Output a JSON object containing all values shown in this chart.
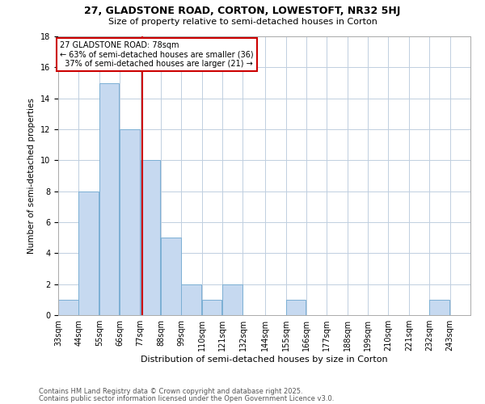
{
  "title1": "27, GLADSTONE ROAD, CORTON, LOWESTOFT, NR32 5HJ",
  "title2": "Size of property relative to semi-detached houses in Corton",
  "xlabel": "Distribution of semi-detached houses by size in Corton",
  "ylabel": "Number of semi-detached properties",
  "bins": [
    33,
    44,
    55,
    66,
    77,
    88,
    99,
    110,
    121,
    132,
    144,
    155,
    166,
    177,
    188,
    199,
    210,
    221,
    232,
    243,
    254
  ],
  "counts": [
    1,
    8,
    15,
    12,
    10,
    5,
    2,
    1,
    2,
    0,
    0,
    1,
    0,
    0,
    0,
    0,
    0,
    0,
    1,
    0
  ],
  "bar_color": "#c6d9f0",
  "bar_edge_color": "#7bafd4",
  "vline_x": 78,
  "vline_color": "#cc0000",
  "annotation_text": "27 GLADSTONE ROAD: 78sqm\n← 63% of semi-detached houses are smaller (36)\n  37% of semi-detached houses are larger (21) →",
  "annotation_box_color": "#ffffff",
  "annotation_box_edge": "#cc0000",
  "ylim": [
    0,
    18
  ],
  "yticks": [
    0,
    2,
    4,
    6,
    8,
    10,
    12,
    14,
    16,
    18
  ],
  "footer1": "Contains HM Land Registry data © Crown copyright and database right 2025.",
  "footer2": "Contains public sector information licensed under the Open Government Licence v3.0.",
  "bg_color": "#ffffff",
  "grid_color": "#c0cfe0",
  "title1_fontsize": 9,
  "title2_fontsize": 8,
  "xlabel_fontsize": 8,
  "ylabel_fontsize": 7.5,
  "tick_fontsize": 7,
  "annotation_fontsize": 7,
  "footer_fontsize": 6
}
